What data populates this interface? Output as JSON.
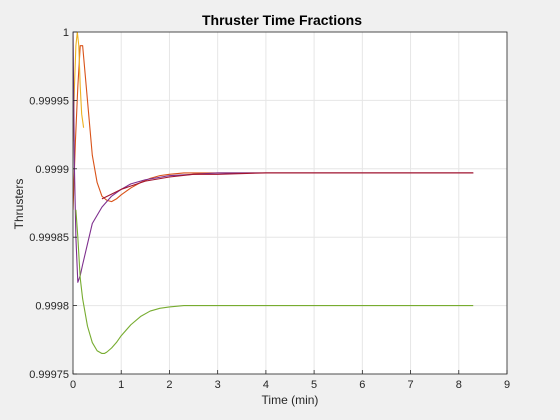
{
  "chart_data": {
    "type": "line",
    "title": "Thruster Time Fractions",
    "xlabel": "Time (min)",
    "ylabel": "Thrusters",
    "xlim": [
      0,
      9
    ],
    "ylim": [
      0.99975,
      1.0
    ],
    "xticks": [
      "0",
      "1",
      "2",
      "3",
      "4",
      "5",
      "6",
      "7",
      "8",
      "9"
    ],
    "yticks": [
      "0.99975",
      "0.9998",
      "0.99985",
      "0.9999",
      "0.99995",
      "1"
    ],
    "grid": true,
    "colors": [
      "#0072bd",
      "#d95319",
      "#edb120",
      "#7e2f8e",
      "#77ac30",
      "#a2142f"
    ],
    "series": [
      {
        "color": "#d95319",
        "x": [
          0,
          0.05,
          0.1,
          0.15,
          0.2,
          0.25,
          0.3,
          0.4,
          0.5,
          0.6,
          0.7,
          0.8,
          0.9,
          1.0,
          1.2,
          1.4,
          1.6,
          1.8,
          2.0,
          2.3,
          2.6,
          3.0,
          3.5,
          4.0,
          5.0,
          6.0,
          7.0,
          8.3
        ],
        "y": [
          0.99987,
          0.99992,
          0.99996,
          0.99999,
          0.99999,
          0.99997,
          0.99995,
          0.99991,
          0.99989,
          0.99988,
          0.999877,
          0.999876,
          0.999878,
          0.999881,
          0.999886,
          0.99989,
          0.999893,
          0.999895,
          0.999896,
          0.999897,
          0.999897,
          0.999897,
          0.999897,
          0.999897,
          0.999897,
          0.999897,
          0.999897,
          0.999897
        ]
      },
      {
        "color": "#edb120",
        "x": [
          0,
          0.03,
          0.06,
          0.09,
          0.12,
          0.15,
          0.18,
          0.22
        ],
        "y": [
          0.99992,
          0.99996,
          0.99999,
          1.0,
          0.99999,
          0.99996,
          0.99994,
          0.99993
        ]
      },
      {
        "color": "#7e2f8e",
        "x": [
          0,
          0.03,
          0.06,
          0.1,
          0.15,
          0.2,
          0.3,
          0.4,
          0.6,
          0.8,
          1.0,
          1.2,
          1.5,
          2.0,
          2.5,
          3.0,
          4.0,
          5.0,
          6.0,
          7.0,
          8.3
        ],
        "y": [
          1.0,
          0.9999,
          0.99985,
          0.999817,
          0.999822,
          0.99983,
          0.999845,
          0.99986,
          0.999872,
          0.99988,
          0.999885,
          0.999889,
          0.999892,
          0.999895,
          0.999896,
          0.999897,
          0.999897,
          0.999897,
          0.999897,
          0.999897,
          0.999897
        ]
      },
      {
        "color": "#77ac30",
        "x": [
          0.06,
          0.1,
          0.15,
          0.2,
          0.3,
          0.4,
          0.5,
          0.6,
          0.65,
          0.7,
          0.8,
          0.9,
          1.0,
          1.2,
          1.4,
          1.6,
          1.8,
          2.0,
          2.3,
          2.6,
          3.0,
          3.5,
          4.0,
          5.0,
          6.0,
          7.0,
          8.3
        ],
        "y": [
          0.99987,
          0.99985,
          0.99982,
          0.999805,
          0.999785,
          0.999773,
          0.999767,
          0.999765,
          0.999765,
          0.999766,
          0.999769,
          0.999773,
          0.999778,
          0.999786,
          0.999792,
          0.999796,
          0.999798,
          0.999799,
          0.9998,
          0.9998,
          0.9998,
          0.9998,
          0.9998,
          0.9998,
          0.9998,
          0.9998,
          0.9998
        ]
      },
      {
        "color": "#a2142f",
        "x": [
          0.6,
          1.0,
          1.5,
          2.0,
          2.5,
          3.0,
          4.0,
          5.0,
          6.0,
          7.0,
          8.3
        ],
        "y": [
          0.999878,
          0.999885,
          0.999891,
          0.999894,
          0.999896,
          0.999896,
          0.999897,
          0.999897,
          0.999897,
          0.999897,
          0.999897
        ]
      }
    ]
  }
}
